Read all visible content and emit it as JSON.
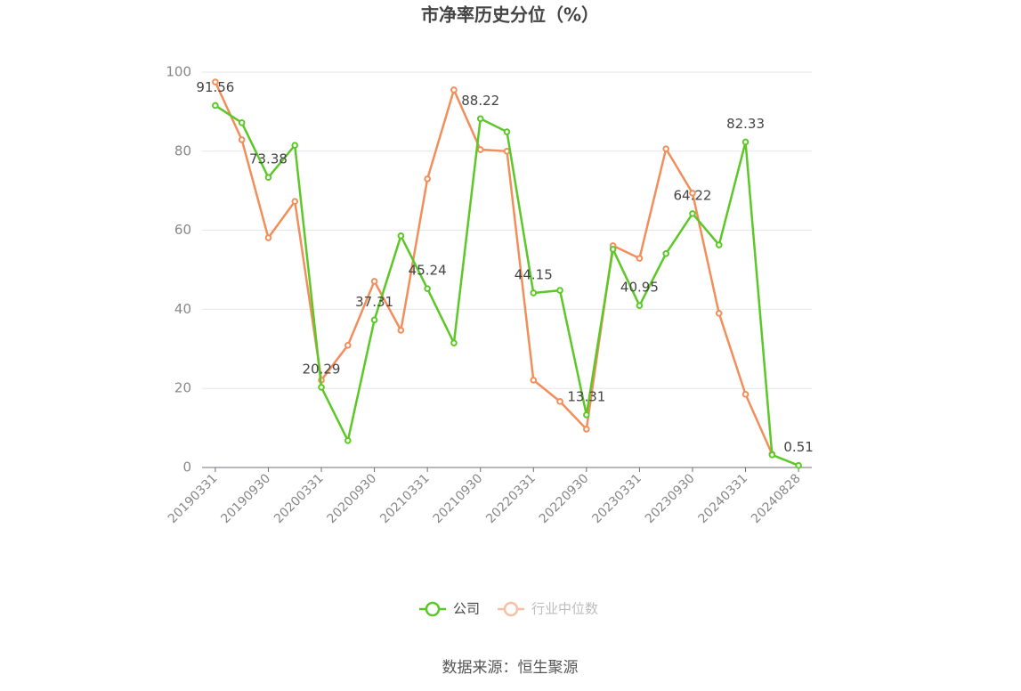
{
  "chart_data": {
    "type": "line",
    "title": "市净率历史分位（%）",
    "categories": [
      "20190331",
      null,
      "20190930",
      null,
      "20200331",
      null,
      "20200930",
      null,
      "20210331",
      null,
      "20210930",
      null,
      "20220331",
      null,
      "20220930",
      null,
      "20230331",
      null,
      "20230930",
      null,
      "20240331",
      null,
      "20240828"
    ],
    "series": [
      {
        "name": "公司",
        "color": "#5cc827",
        "values": [
          91.56,
          87.2,
          73.38,
          81.5,
          20.29,
          6.8,
          37.31,
          58.6,
          45.24,
          31.5,
          88.22,
          84.9,
          44.15,
          44.8,
          13.31,
          55.2,
          40.95,
          54.1,
          64.22,
          56.3,
          82.33,
          3.2,
          0.51
        ],
        "value_labels": [
          "91.56",
          null,
          "73.38",
          null,
          "20.29",
          null,
          "37.31",
          null,
          "45.24",
          null,
          "88.22",
          null,
          "44.15",
          null,
          "13.31",
          null,
          "40.95",
          null,
          "64.22",
          null,
          "82.33",
          null,
          "0.51"
        ]
      },
      {
        "name": "行业中位数",
        "color": "#f28e5a",
        "values": [
          97.5,
          82.9,
          58.1,
          67.3,
          22.1,
          30.9,
          47.1,
          34.7,
          73.0,
          95.5,
          80.4,
          80.0,
          22.1,
          16.7,
          9.7,
          56.1,
          52.9,
          80.6,
          69.4,
          39.0,
          18.5,
          3.4,
          null
        ]
      }
    ],
    "ylim": [
      0,
      100
    ],
    "yticks": [
      0,
      20,
      40,
      60,
      80,
      100
    ],
    "grid": true,
    "source": "数据来源：恒生聚源"
  }
}
